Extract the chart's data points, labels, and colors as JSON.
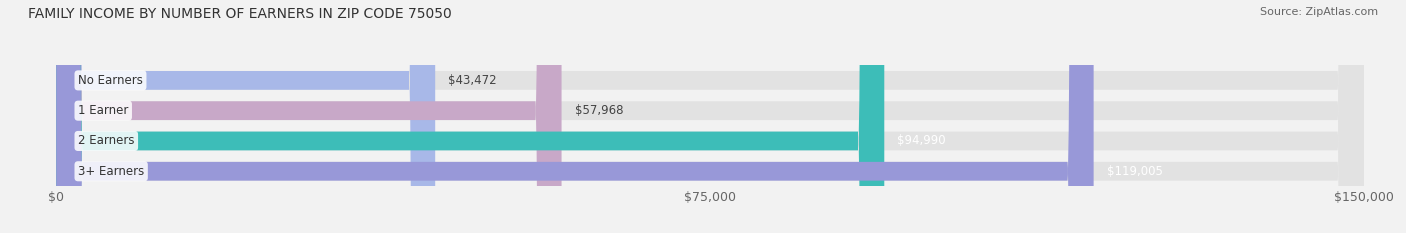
{
  "title": "FAMILY INCOME BY NUMBER OF EARNERS IN ZIP CODE 75050",
  "source": "Source: ZipAtlas.com",
  "categories": [
    "No Earners",
    "1 Earner",
    "2 Earners",
    "3+ Earners"
  ],
  "values": [
    43472,
    57968,
    94990,
    119005
  ],
  "bar_colors": [
    "#a8b8e8",
    "#c8a8c8",
    "#3dbdb8",
    "#9898d8"
  ],
  "label_colors": [
    "#444444",
    "#444444",
    "#ffffff",
    "#ffffff"
  ],
  "value_labels": [
    "$43,472",
    "$57,968",
    "$94,990",
    "$119,005"
  ],
  "xlim": [
    0,
    150000
  ],
  "xticks": [
    0,
    75000,
    150000
  ],
  "xticklabels": [
    "$0",
    "$75,000",
    "$150,000"
  ],
  "background_color": "#f2f2f2",
  "bar_background_color": "#e2e2e2",
  "title_fontsize": 10,
  "source_fontsize": 8,
  "tick_fontsize": 9,
  "label_fontsize": 8.5,
  "value_fontsize": 8.5
}
